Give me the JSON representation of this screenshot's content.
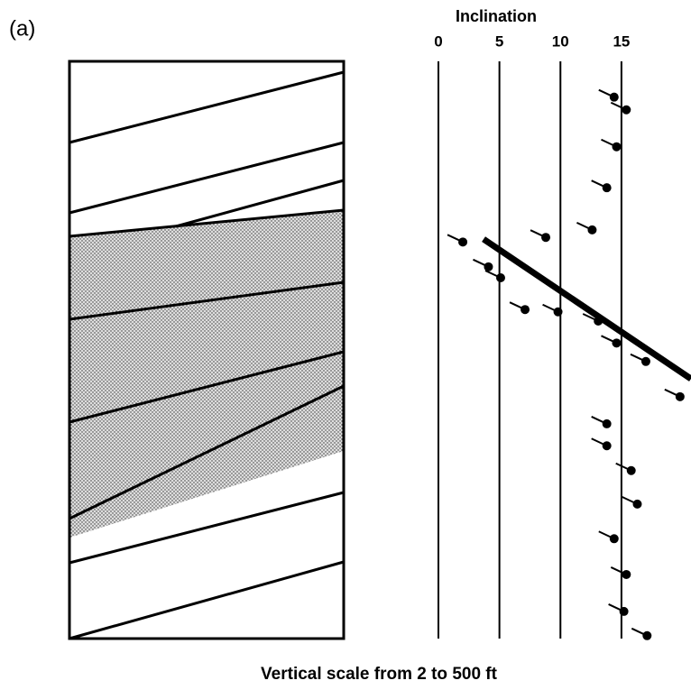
{
  "chart_data": {
    "type": "scatter",
    "panel_label": "(a)",
    "title": "Inclination",
    "caption": "Vertical scale from 2 to 500 ft",
    "xlim": [
      0,
      20.7
    ],
    "xticks": [
      0,
      5,
      10,
      15
    ],
    "ylim": [
      0,
      100
    ],
    "y_inverted": true,
    "color": "#000000",
    "series": [
      {
        "name": null,
        "x": [
          14.4,
          15.4,
          14.6,
          13.8,
          12.6,
          8.8,
          2.0,
          4.1,
          5.1,
          7.1,
          9.8,
          13.1,
          14.6,
          17.0,
          19.8,
          13.8,
          13.8,
          15.8,
          16.3,
          14.4,
          15.4,
          15.2,
          17.1
        ],
        "values": [
          6.2,
          8.4,
          14.8,
          21.9,
          29.2,
          30.5,
          31.3,
          35.6,
          37.5,
          43.0,
          43.4,
          45.0,
          48.8,
          52.0,
          58.1,
          62.8,
          66.6,
          70.9,
          76.7,
          82.7,
          88.9,
          95.3,
          99.5
        ]
      }
    ],
    "trend": {
      "x": [
        3.7,
        20.7
      ],
      "values": [
        30.8,
        55.0
      ]
    }
  }
}
